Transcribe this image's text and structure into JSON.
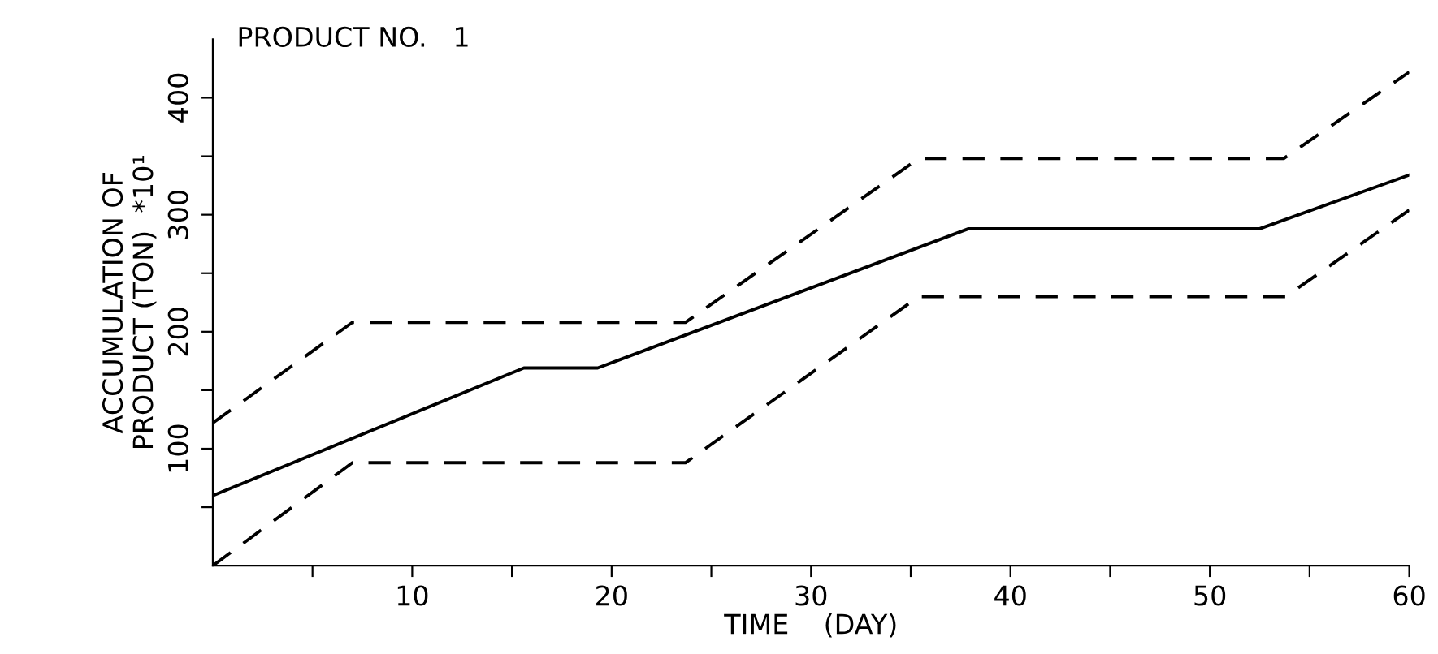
{
  "chart_data": {
    "type": "line",
    "title": "PRODUCT NO.   1",
    "xlabel": "TIME    (DAY)",
    "ylabel": "ACCUMULATION OF\nPRODUCT (TON)  *10¹",
    "xlim": [
      0,
      60
    ],
    "ylim": [
      0,
      450
    ],
    "xticks": [
      {
        "value": 5,
        "label": null
      },
      10,
      {
        "value": 15,
        "label": null
      },
      20,
      {
        "value": 25,
        "label": null
      },
      30,
      {
        "value": 35,
        "label": null
      },
      40,
      {
        "value": 45,
        "label": null
      },
      50,
      {
        "value": 55,
        "label": null
      },
      60
    ],
    "yticks": [
      {
        "value": 50,
        "label": null
      },
      100,
      {
        "value": 150,
        "label": null
      },
      200,
      {
        "value": 250,
        "label": null
      },
      300,
      {
        "value": 350,
        "label": null
      },
      400
    ],
    "grid": false,
    "legend": false,
    "marker": "none",
    "series": [
      {
        "color": "#000000",
        "line_style": "solid",
        "x": [
          0,
          15.6,
          19.3,
          37.9,
          52.5,
          60
        ],
        "values": [
          60,
          169,
          169,
          288,
          288,
          334
        ]
      },
      {
        "color": "#000000",
        "line_style": "dashed",
        "x": [
          0,
          7.0,
          23.7,
          35.4,
          53.7,
          60
        ],
        "values": [
          122,
          208,
          208,
          348,
          348,
          422
        ]
      },
      {
        "color": "#000000",
        "line_style": "dashed",
        "x": [
          0,
          7.0,
          23.7,
          35.4,
          53.8,
          60
        ],
        "values": [
          0,
          88,
          88,
          230,
          230,
          304
        ]
      }
    ]
  }
}
